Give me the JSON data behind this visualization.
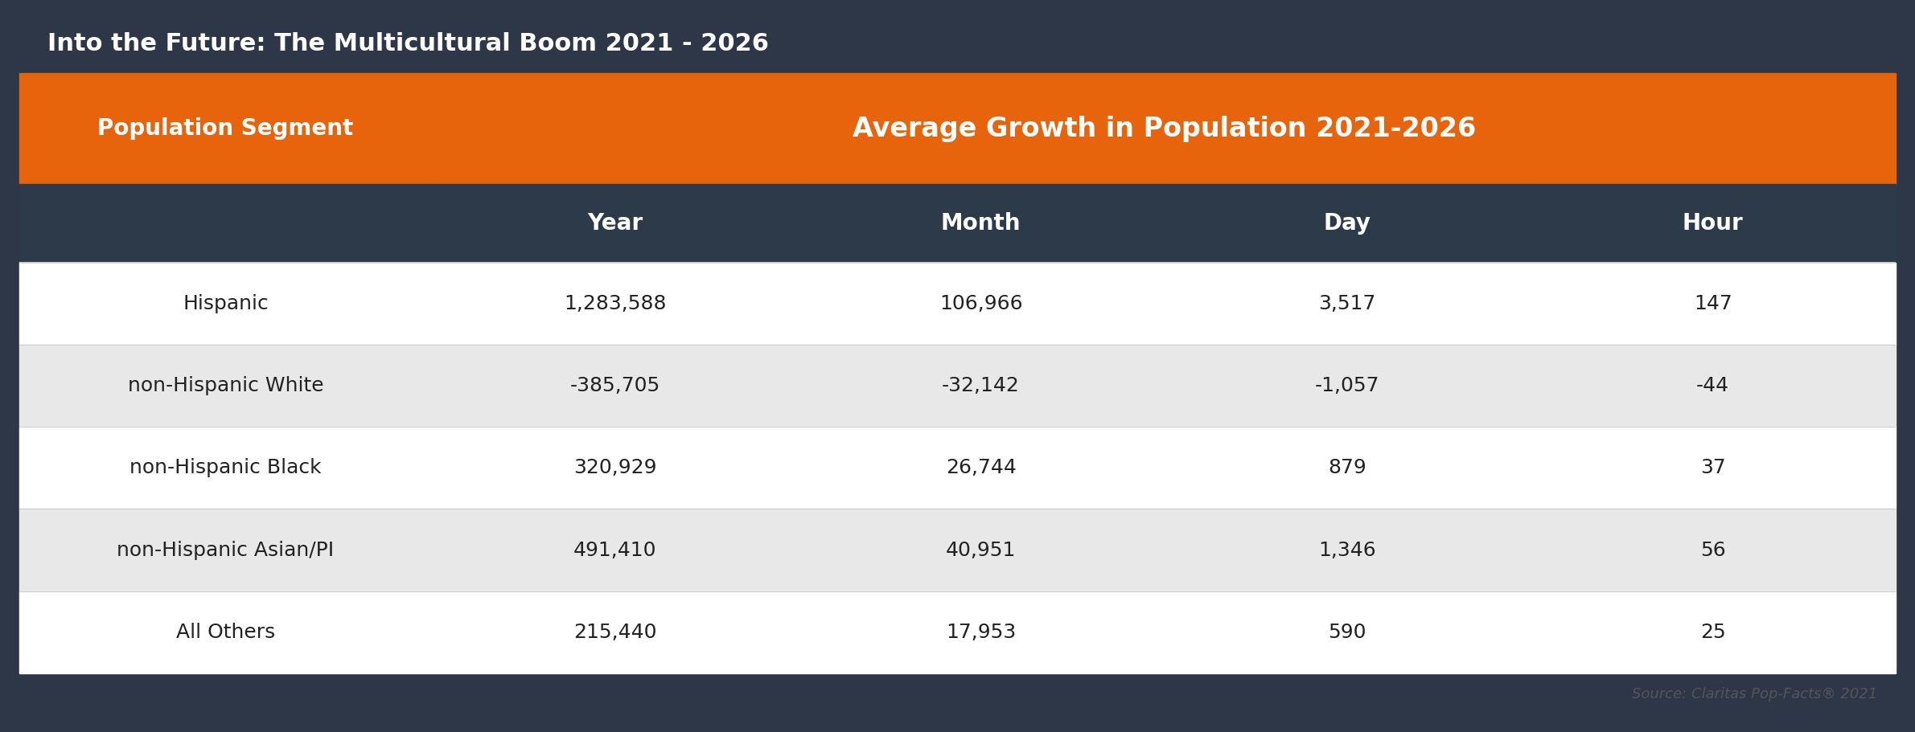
{
  "title": "Into the Future: The Multicultural Boom 2021 - 2026",
  "title_color": "#FFFFFF",
  "title_bg_color": "#2d3748",
  "header_main": "Average Growth in Population 2021-2026",
  "header_main_bg": "#E8640C",
  "header_main_color": "#FFFFFF",
  "header_sub_bg": "#2d3a4a",
  "header_sub_color": "#FFFFFF",
  "col_header_left": "Population Segment",
  "col_headers": [
    "Year",
    "Month",
    "Day",
    "Hour"
  ],
  "rows": [
    {
      "segment": "Hispanic",
      "year": "1,283,588",
      "month": "106,966",
      "day": "3,517",
      "hour": "147",
      "bg": "#FFFFFF"
    },
    {
      "segment": "non-Hispanic White",
      "year": "-385,705",
      "month": "-32,142",
      "day": "-1,057",
      "hour": "-44",
      "bg": "#E8E8E8"
    },
    {
      "segment": "non-Hispanic Black",
      "year": "320,929",
      "month": "26,744",
      "day": "879",
      "hour": "37",
      "bg": "#FFFFFF"
    },
    {
      "segment": "non-Hispanic Asian/PI",
      "year": "491,410",
      "month": "40,951",
      "day": "1,346",
      "hour": "56",
      "bg": "#E8E8E8"
    },
    {
      "segment": "All Others",
      "year": "215,440",
      "month": "17,953",
      "day": "590",
      "hour": "25",
      "bg": "#FFFFFF"
    }
  ],
  "source_text": "Source: Claritas Pop-Facts® 2021",
  "source_color": "#555555",
  "outer_bg": "#2d3748",
  "table_bg": "#FFFFFF",
  "figsize": [
    23.81,
    9.11
  ],
  "dpi": 100
}
